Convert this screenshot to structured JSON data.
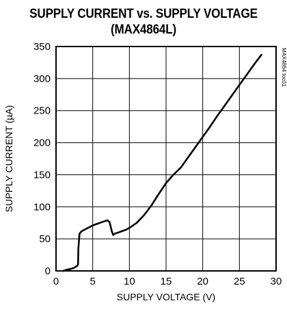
{
  "chart_data": {
    "type": "line",
    "title": "SUPPLY CURRENT vs. SUPPLY VOLTAGE",
    "subtitle": "(MAX4864L)",
    "xlabel": "SUPPLY VOLTAGE (V)",
    "ylabel": "SUPPLY CURRENT (µA)",
    "xlim": [
      0,
      30
    ],
    "ylim": [
      0,
      350
    ],
    "xticks": [
      "0",
      "5",
      "10",
      "15",
      "20",
      "25",
      "30"
    ],
    "yticks": [
      "0",
      "50",
      "100",
      "150",
      "200",
      "250",
      "300",
      "350"
    ],
    "grid": true,
    "figure_id": "MAX4864 toc01",
    "series": [
      {
        "x": [
          1.0,
          1.5,
          2.0,
          2.5,
          2.9,
          3.0,
          3.05,
          3.2,
          3.5,
          4.0,
          4.5,
          5.0,
          5.5,
          6.0,
          6.5,
          7.0,
          7.3,
          7.6,
          7.8,
          8.0,
          8.5,
          9.0,
          9.5,
          10.0,
          11.0,
          12.0,
          13.0,
          14.0,
          15.0,
          16.0,
          17.0,
          18.0,
          19.0,
          20.0,
          21.0,
          22.0,
          23.0,
          24.0,
          25.0,
          26.0,
          27.0,
          28.0
        ],
        "y": [
          0,
          2,
          3,
          5,
          8,
          10,
          35,
          58,
          62,
          65,
          68,
          71,
          73,
          75,
          77,
          79,
          76,
          62,
          56,
          58,
          60,
          62,
          64,
          67,
          75,
          87,
          102,
          120,
          137,
          150,
          161,
          177,
          193,
          209,
          225,
          242,
          258,
          274,
          290,
          306,
          322,
          337
        ]
      }
    ]
  }
}
